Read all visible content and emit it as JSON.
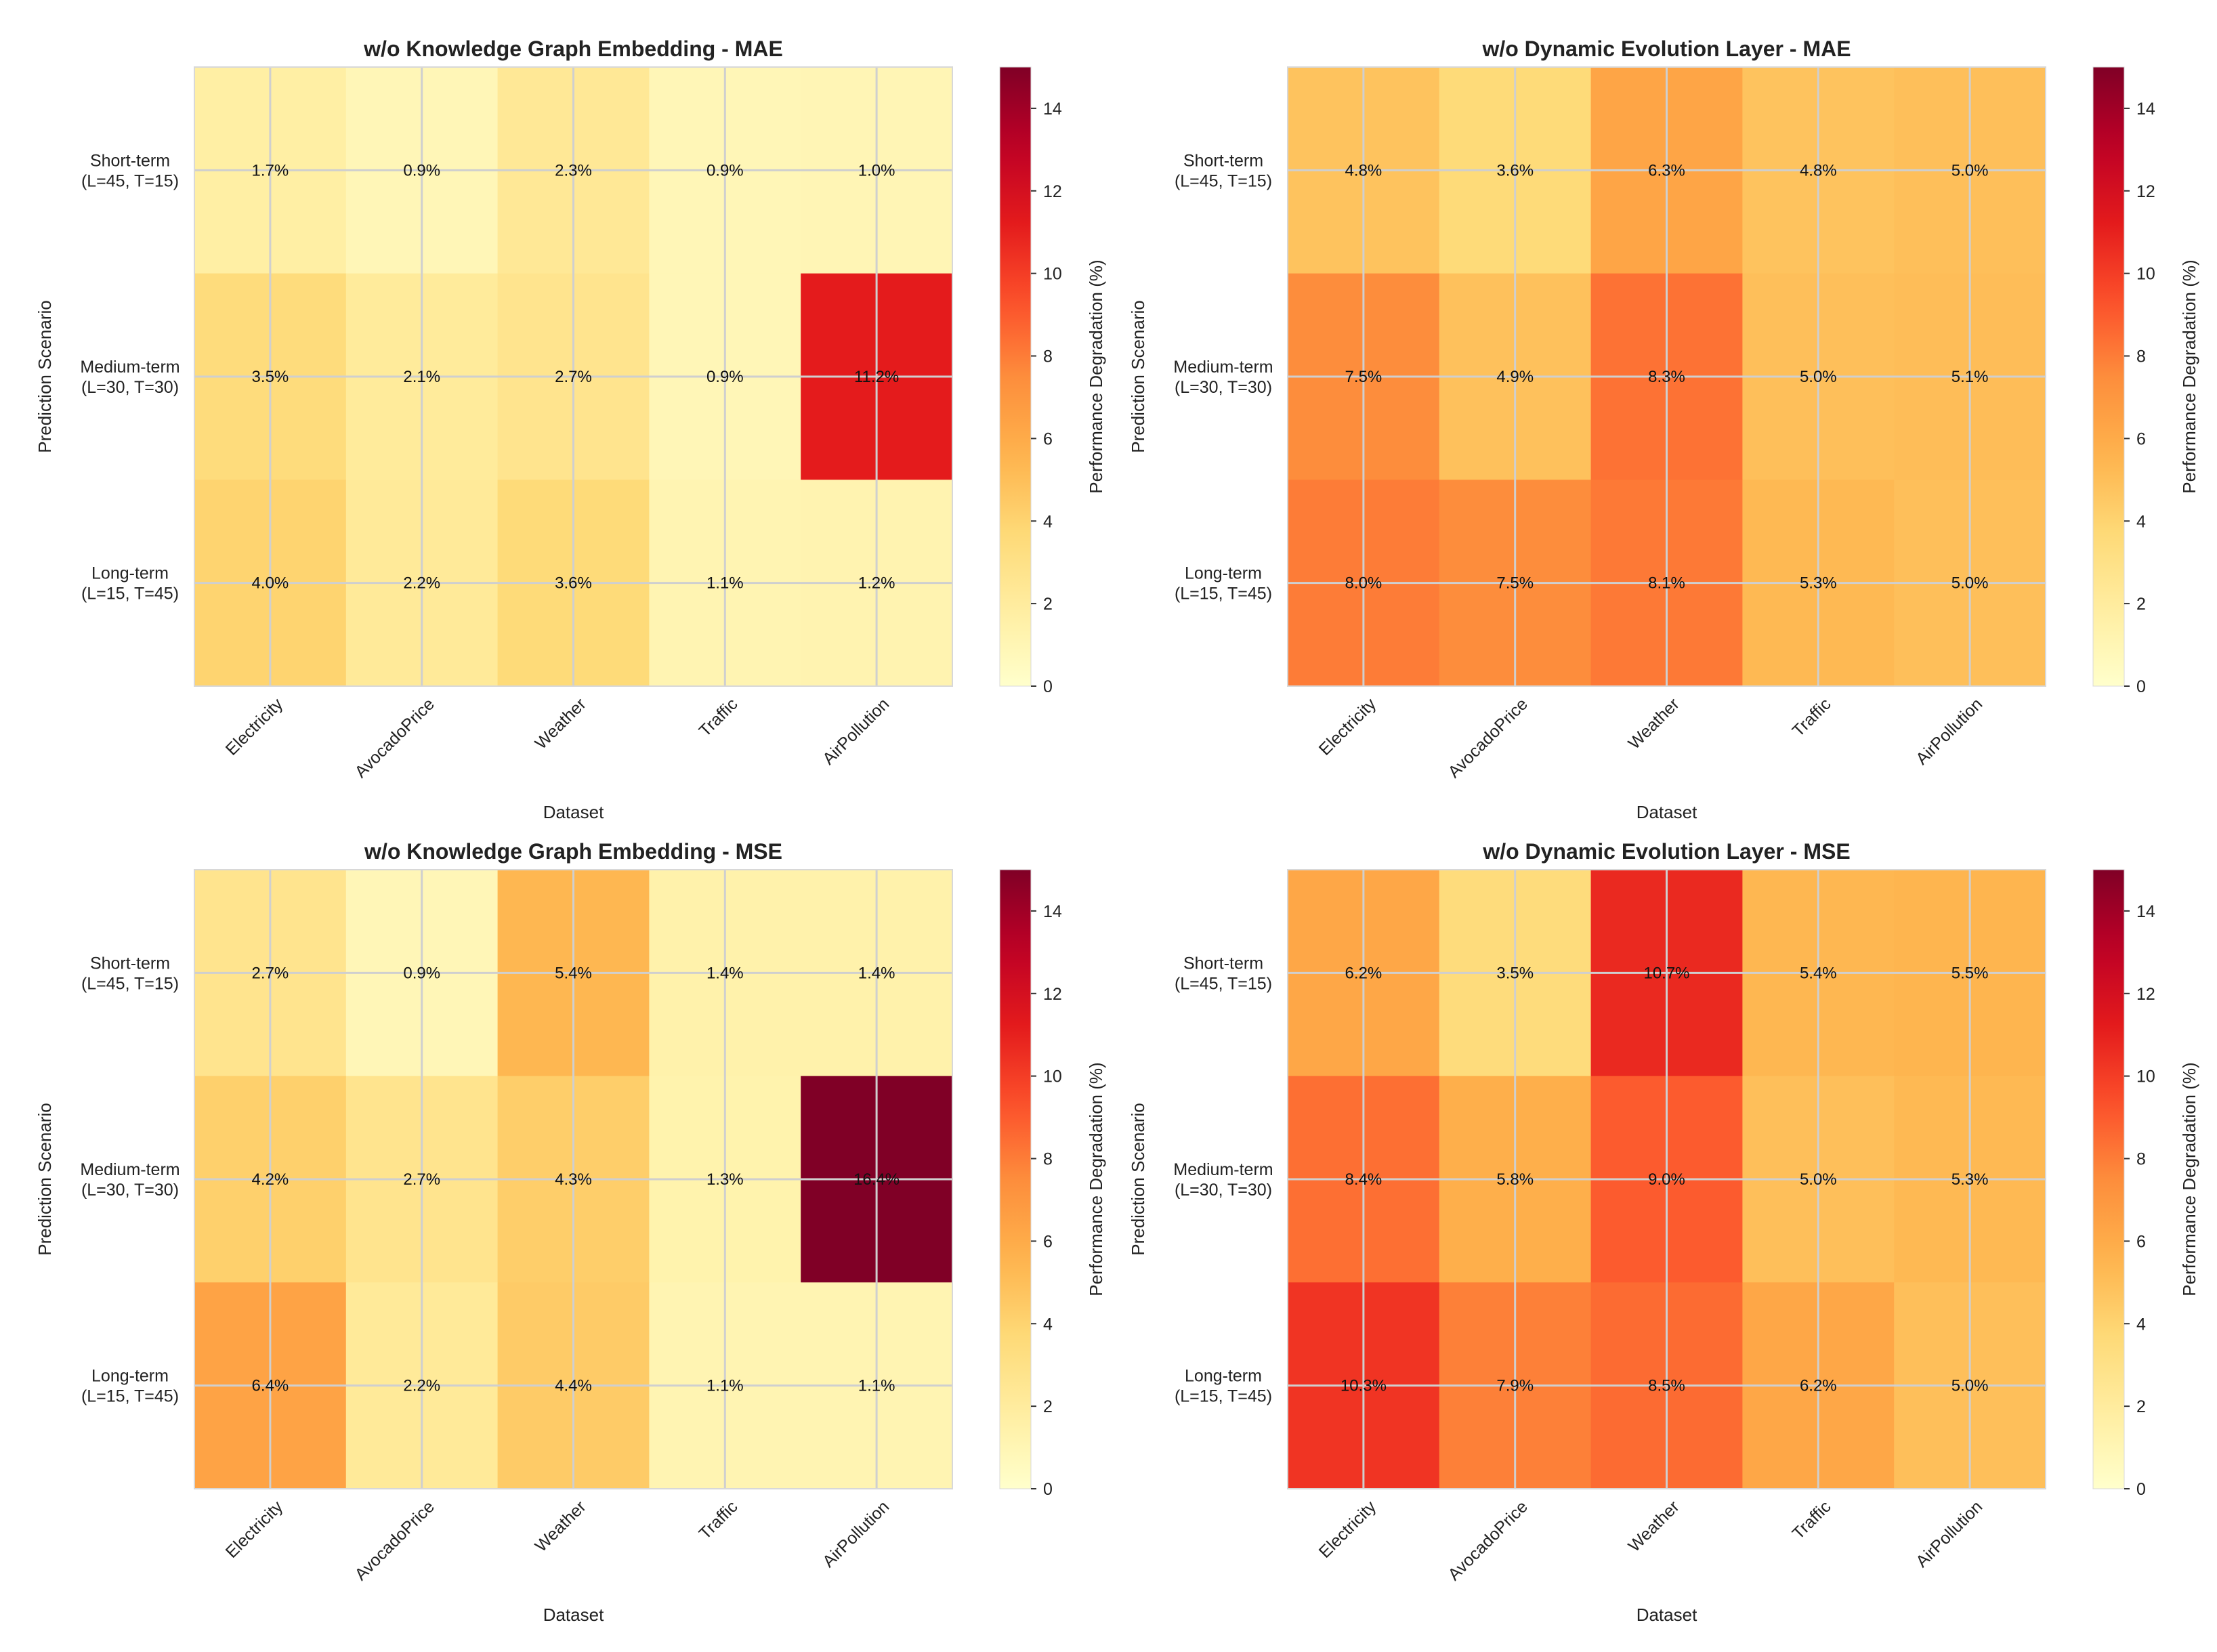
{
  "chart_data": [
    {
      "type": "heatmap",
      "title": "w/o Knowledge Graph Embedding - MAE",
      "xlabel": "Dataset",
      "ylabel": "Prediction Scenario",
      "colorbar_label": "Performance Degradation (%)",
      "colormap": "YlOrRd",
      "vlim": [
        0,
        15
      ],
      "colorbar_ticks": [
        0,
        2,
        4,
        6,
        8,
        10,
        12,
        14
      ],
      "x_categories": [
        "Electricity",
        "AvocadoPrice",
        "Weather",
        "Traffic",
        "AirPollution"
      ],
      "y_categories": [
        "Short-term\n(L=45, T=15)",
        "Medium-term\n(L=30, T=30)",
        "Long-term\n(L=15, T=45)"
      ],
      "values": [
        [
          1.7,
          0.9,
          2.3,
          0.9,
          1.0
        ],
        [
          3.5,
          2.1,
          2.7,
          0.9,
          11.2
        ],
        [
          4.0,
          2.2,
          3.6,
          1.1,
          1.2
        ]
      ],
      "grid": true
    },
    {
      "type": "heatmap",
      "title": "w/o Dynamic Evolution Layer - MAE",
      "xlabel": "Dataset",
      "ylabel": "Prediction Scenario",
      "colorbar_label": "Performance Degradation (%)",
      "colormap": "YlOrRd",
      "vlim": [
        0,
        15
      ],
      "colorbar_ticks": [
        0,
        2,
        4,
        6,
        8,
        10,
        12,
        14
      ],
      "x_categories": [
        "Electricity",
        "AvocadoPrice",
        "Weather",
        "Traffic",
        "AirPollution"
      ],
      "y_categories": [
        "Short-term\n(L=45, T=15)",
        "Medium-term\n(L=30, T=30)",
        "Long-term\n(L=15, T=45)"
      ],
      "values": [
        [
          4.8,
          3.6,
          6.3,
          4.8,
          5.0
        ],
        [
          7.5,
          4.9,
          8.3,
          5.0,
          5.1
        ],
        [
          8.0,
          7.5,
          8.1,
          5.3,
          5.0
        ]
      ],
      "grid": true
    },
    {
      "type": "heatmap",
      "title": "w/o Knowledge Graph Embedding - MSE",
      "xlabel": "Dataset",
      "ylabel": "Prediction Scenario",
      "colorbar_label": "Performance Degradation (%)",
      "colormap": "YlOrRd",
      "vlim": [
        0,
        15
      ],
      "colorbar_ticks": [
        0,
        2,
        4,
        6,
        8,
        10,
        12,
        14
      ],
      "x_categories": [
        "Electricity",
        "AvocadoPrice",
        "Weather",
        "Traffic",
        "AirPollution"
      ],
      "y_categories": [
        "Short-term\n(L=45, T=15)",
        "Medium-term\n(L=30, T=30)",
        "Long-term\n(L=15, T=45)"
      ],
      "values": [
        [
          2.7,
          0.9,
          5.4,
          1.4,
          1.4
        ],
        [
          4.2,
          2.7,
          4.3,
          1.3,
          16.4
        ],
        [
          6.4,
          2.2,
          4.4,
          1.1,
          1.1
        ]
      ],
      "grid": true
    },
    {
      "type": "heatmap",
      "title": "w/o Dynamic Evolution Layer - MSE",
      "xlabel": "Dataset",
      "ylabel": "Prediction Scenario",
      "colorbar_label": "Performance Degradation (%)",
      "colormap": "YlOrRd",
      "vlim": [
        0,
        15
      ],
      "colorbar_ticks": [
        0,
        2,
        4,
        6,
        8,
        10,
        12,
        14
      ],
      "x_categories": [
        "Electricity",
        "AvocadoPrice",
        "Weather",
        "Traffic",
        "AirPollution"
      ],
      "y_categories": [
        "Short-term\n(L=45, T=15)",
        "Medium-term\n(L=30, T=30)",
        "Long-term\n(L=15, T=45)"
      ],
      "values": [
        [
          6.2,
          3.5,
          10.7,
          5.4,
          5.5
        ],
        [
          8.4,
          5.8,
          9.0,
          5.0,
          5.3
        ],
        [
          10.3,
          7.9,
          8.5,
          6.2,
          5.0
        ]
      ],
      "grid": true
    }
  ]
}
